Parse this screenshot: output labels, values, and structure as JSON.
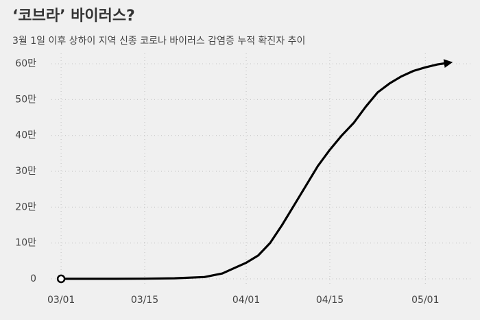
{
  "chart_data": {
    "type": "line",
    "title": "‘코브라’ 바이러스?",
    "subtitle": "3월 1일 이후 상하이 지역 신종 코로나 바이러스 감염증 누적 확진자 추이",
    "x": [
      "03/01",
      "03/05",
      "03/10",
      "03/15",
      "03/20",
      "03/25",
      "03/28",
      "03/30",
      "04/01",
      "04/03",
      "04/05",
      "04/07",
      "04/09",
      "04/11",
      "04/13",
      "04/15",
      "04/17",
      "04/19",
      "04/21",
      "04/23",
      "04/25",
      "04/27",
      "04/29",
      "05/01",
      "05/03",
      "05/05"
    ],
    "series": [
      {
        "color": "#000000",
        "values": [
          0,
          0,
          0.01,
          0.05,
          0.15,
          0.5,
          1.5,
          3,
          4.5,
          6.5,
          10,
          15,
          20.5,
          26,
          31.5,
          36,
          40,
          43.5,
          48,
          52,
          54.5,
          56.5,
          58,
          59,
          59.8,
          60.3
        ]
      }
    ],
    "xlim": [
      "02/26",
      "05/09"
    ],
    "xticks": [
      "03/01",
      "03/15",
      "04/01",
      "04/15",
      "05/01"
    ],
    "ylim": [
      -2.5,
      62.5
    ],
    "yticks": [
      0,
      {
        "value": 10,
        "label": "10만"
      },
      {
        "value": 20,
        "label": "20만"
      },
      {
        "value": 30,
        "label": "30만"
      },
      {
        "value": 40,
        "label": "40만"
      },
      {
        "value": 50,
        "label": "50만"
      },
      {
        "value": 60,
        "label": "60만"
      }
    ],
    "grid": true
  }
}
